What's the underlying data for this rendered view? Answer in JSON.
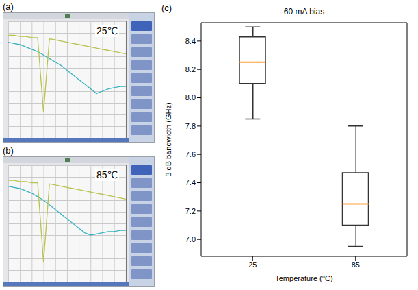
{
  "chart_data": [
    {
      "type": "line",
      "panel": "(a)",
      "annotation": "25℃",
      "tick_labels": false,
      "grid": true,
      "x": [
        0,
        5,
        10,
        15,
        20,
        25,
        30,
        35,
        40,
        45,
        50,
        55,
        60,
        65,
        70,
        75,
        80,
        85,
        90,
        95,
        100
      ],
      "xlim": [
        0,
        100
      ],
      "ylim": [
        0,
        100
      ],
      "series": [
        {
          "color": "#36b2c4",
          "values": [
            82,
            81,
            80,
            78,
            76,
            74,
            71,
            68,
            65,
            62,
            58,
            54,
            50,
            46,
            42,
            38,
            40,
            42,
            43,
            44,
            44
          ]
        },
        {
          "color": "#b9c24c",
          "values": [
            88,
            88,
            87,
            87,
            86,
            86,
            22,
            85,
            84,
            83,
            82,
            81,
            80,
            79,
            78,
            77,
            76,
            75,
            74,
            73,
            72
          ]
        }
      ]
    },
    {
      "type": "line",
      "panel": "(b)",
      "annotation": "85℃",
      "tick_labels": false,
      "grid": true,
      "x": [
        0,
        5,
        10,
        15,
        20,
        25,
        30,
        35,
        40,
        45,
        50,
        55,
        60,
        65,
        70,
        75,
        80,
        85,
        90,
        95,
        100
      ],
      "xlim": [
        0,
        100
      ],
      "ylim": [
        0,
        100
      ],
      "series": [
        {
          "color": "#36b2c4",
          "values": [
            82,
            81,
            80,
            78,
            76,
            73,
            70,
            66,
            62,
            58,
            54,
            50,
            46,
            42,
            40,
            41,
            42,
            43,
            43,
            44,
            44
          ]
        },
        {
          "color": "#b9c24c",
          "values": [
            87,
            87,
            86,
            86,
            85,
            85,
            17,
            84,
            83,
            82,
            81,
            80,
            79,
            78,
            77,
            76,
            75,
            74,
            73,
            72,
            71
          ]
        }
      ]
    },
    {
      "type": "box",
      "panel": "(c)",
      "title": "60 mA bias",
      "x_label": "Temperature (°C)",
      "y_label": "3 dB bandwidth (GHz)",
      "categories": [
        "25",
        "85"
      ],
      "boxes": [
        {
          "whisker_low": 7.85,
          "q1": 8.1,
          "median": 8.25,
          "q3": 8.43,
          "whisker_high": 8.5
        },
        {
          "whisker_low": 6.95,
          "q1": 7.1,
          "median": 7.25,
          "q3": 7.47,
          "whisker_high": 7.8
        }
      ],
      "ylim": [
        6.88,
        8.53
      ],
      "yticks": [
        {
          "value": 7,
          "label": "7.0"
        },
        7.2,
        7.4,
        7.6,
        7.8,
        {
          "value": 8,
          "label": "8.0"
        },
        8.2,
        8.4
      ],
      "color": "#333333",
      "grid": false
    }
  ]
}
